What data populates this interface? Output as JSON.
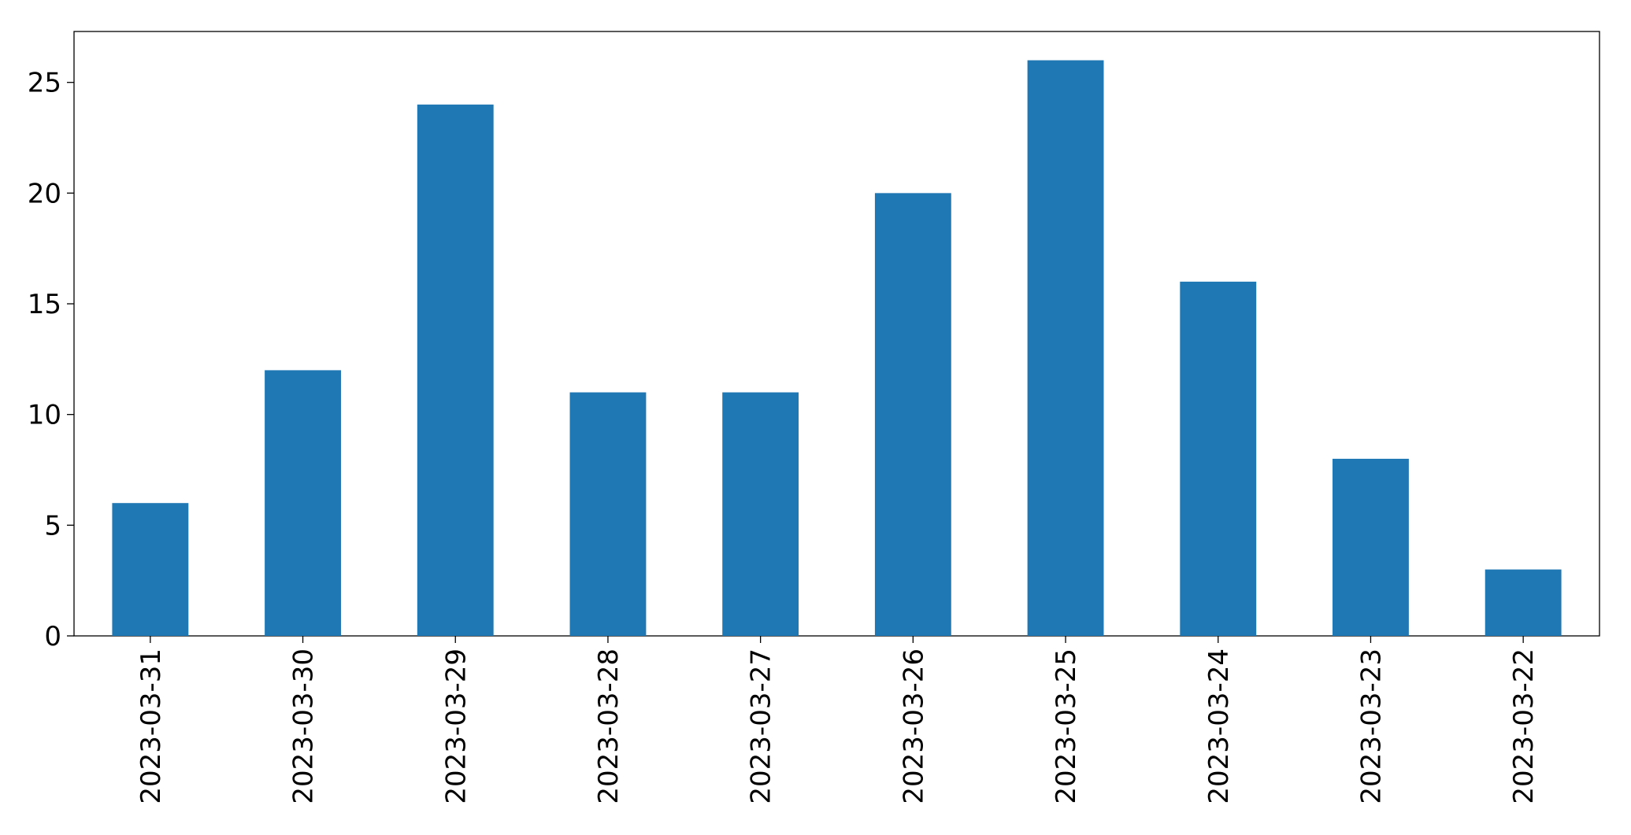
{
  "chart_data": {
    "type": "bar",
    "categories": [
      "2023-03-31",
      "2023-03-30",
      "2023-03-29",
      "2023-03-28",
      "2023-03-27",
      "2023-03-26",
      "2023-03-25",
      "2023-03-24",
      "2023-03-23",
      "2023-03-22"
    ],
    "values": [
      6,
      12,
      24,
      11,
      11,
      20,
      26,
      16,
      8,
      3
    ],
    "color": "#1f77b4",
    "ylim": [
      0,
      27.3
    ],
    "yticks": [
      0,
      5,
      10,
      15,
      20,
      25
    ],
    "grid": false
  }
}
